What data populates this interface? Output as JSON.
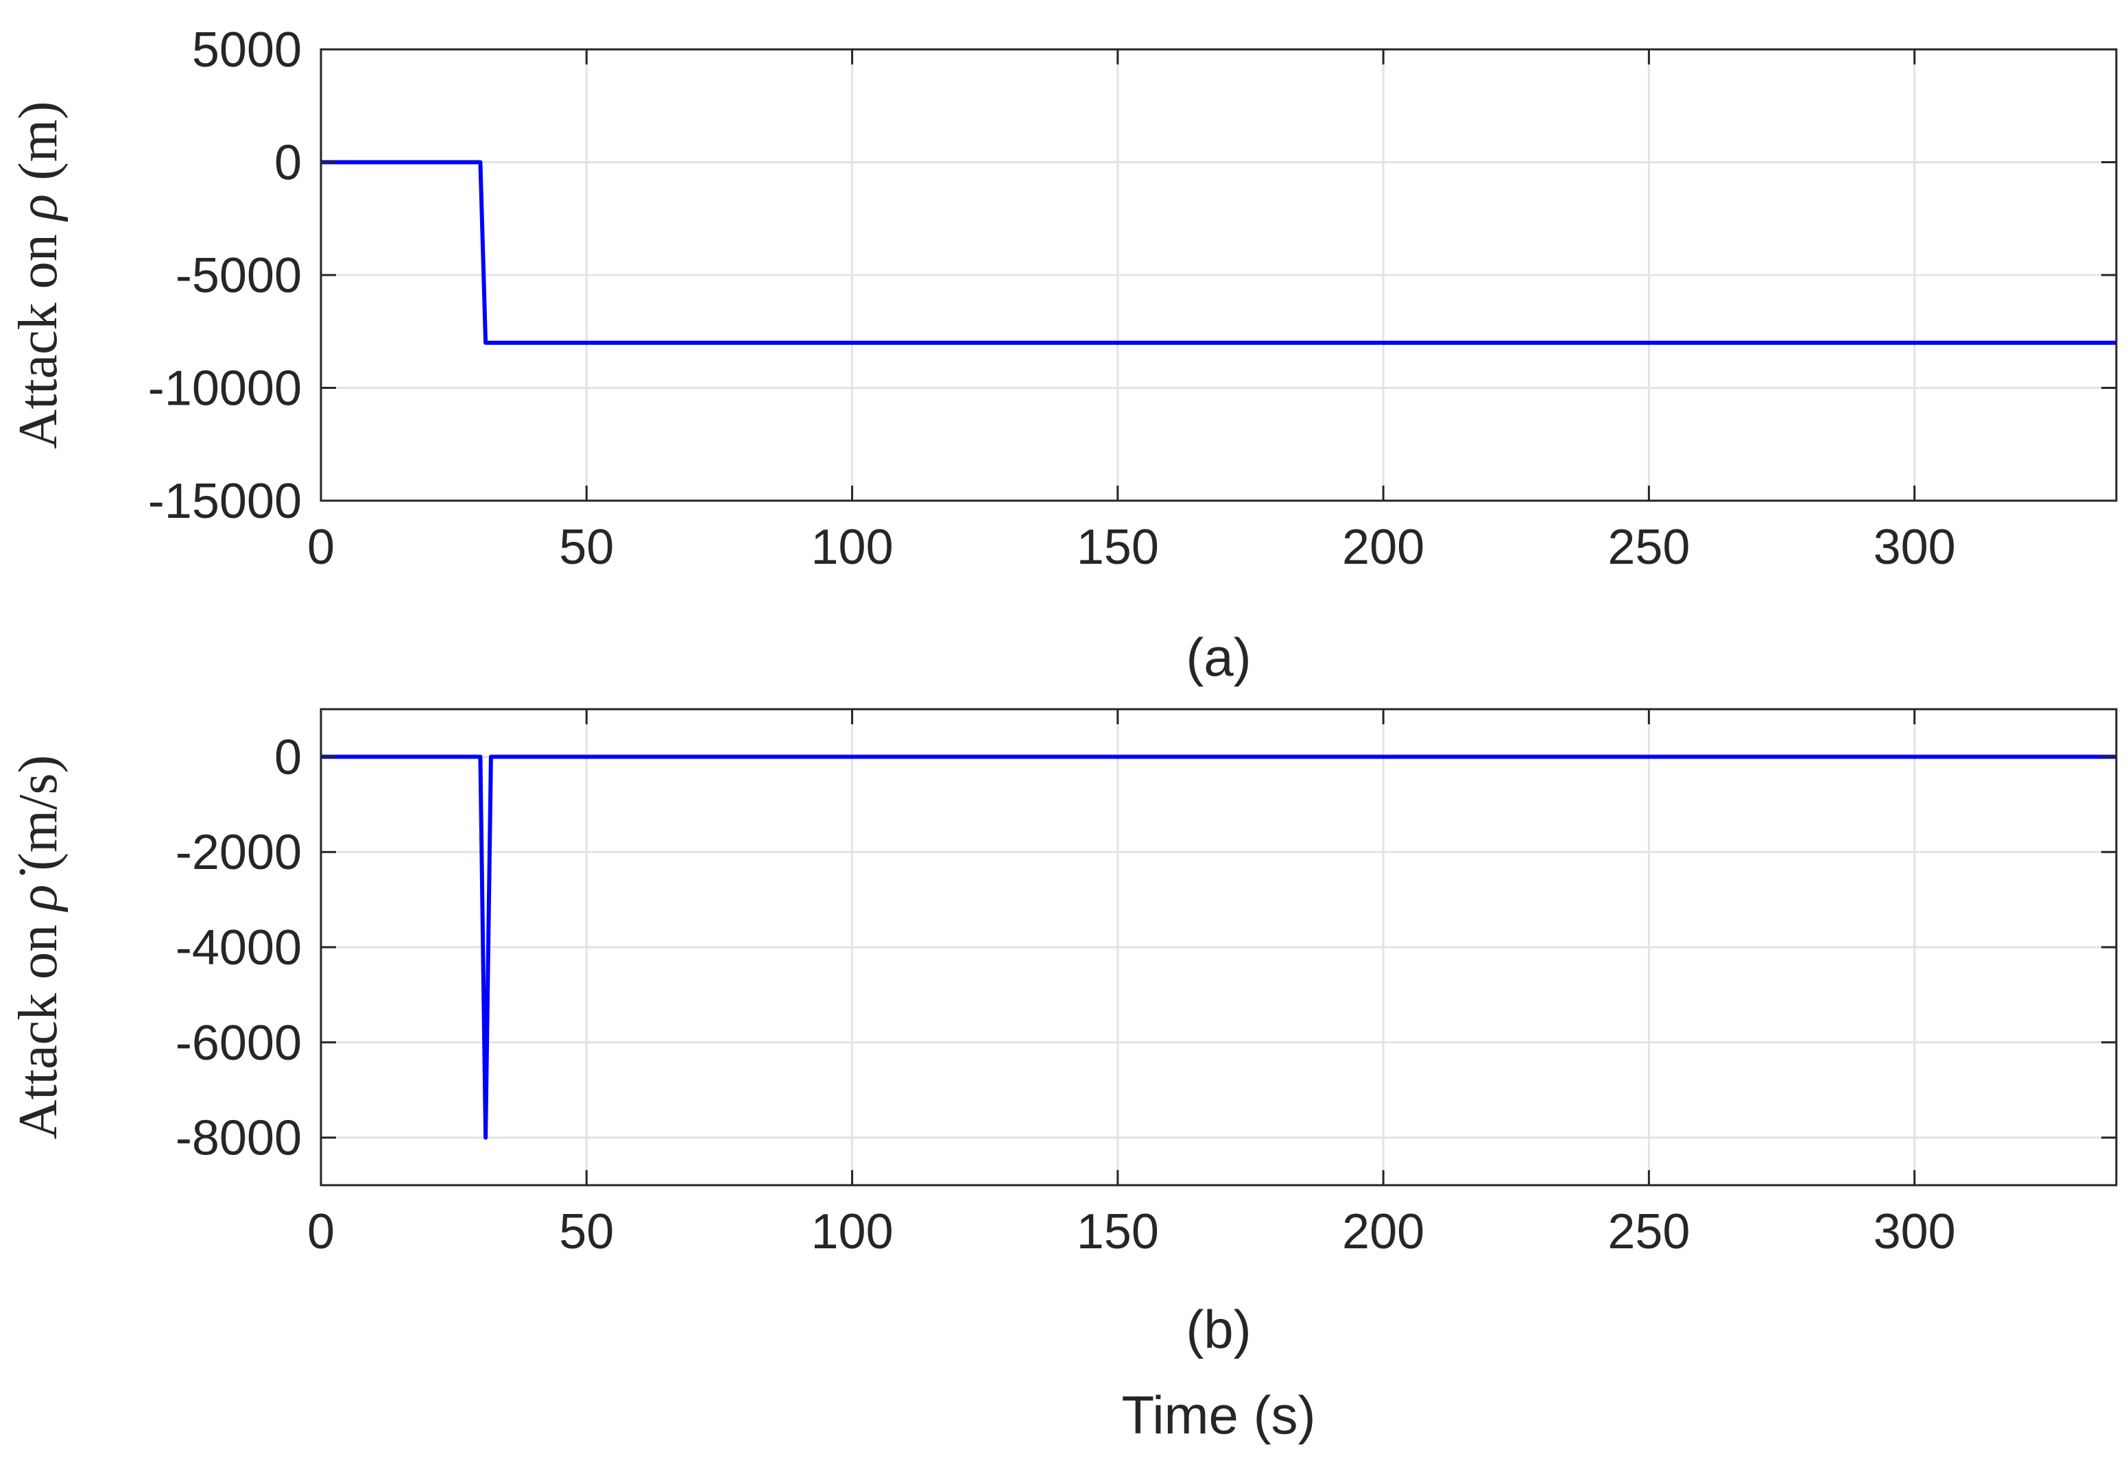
{
  "xlabel": "Time (s)",
  "colors": {
    "series": "#0000ff",
    "grid": "#e3e3e3",
    "axes": "#262626"
  },
  "panels": [
    {
      "caption": "(a)",
      "ylabel": {
        "prefix": "Attack on ",
        "symbol": "ρ",
        "unit": " (m)"
      },
      "xticks": [
        "0",
        "50",
        "100",
        "150",
        "200",
        "250",
        "300"
      ],
      "yticks": [
        "5000",
        "0",
        "-5000",
        "-10000",
        "-15000"
      ]
    },
    {
      "caption": "(b)",
      "ylabel": {
        "prefix": "Attack on ",
        "symbol": "ρ̇",
        "unit": " (m/s)"
      },
      "xticks": [
        "0",
        "50",
        "100",
        "150",
        "200",
        "250",
        "300"
      ],
      "yticks": [
        "0",
        "-2000",
        "-4000",
        "-6000",
        "-8000"
      ]
    }
  ],
  "chart_data": [
    {
      "type": "line",
      "xlabel": "",
      "ylabel": "Attack on ρ (m)",
      "xlim": [
        0,
        338
      ],
      "ylim": [
        -15000,
        5000
      ],
      "xticks": [
        0,
        50,
        100,
        150,
        200,
        250,
        300
      ],
      "yticks": [
        5000,
        0,
        -5000,
        -10000,
        -15000
      ],
      "grid": true,
      "series": [
        {
          "x": [
            0,
            30,
            31,
            338
          ],
          "y": [
            0,
            0,
            -8000,
            -8000
          ]
        }
      ]
    },
    {
      "type": "line",
      "xlabel": "Time (s)",
      "ylabel": "Attack on ρ̇ (m/s)",
      "xlim": [
        0,
        338
      ],
      "ylim": [
        -9000,
        1000
      ],
      "xticks": [
        0,
        50,
        100,
        150,
        200,
        250,
        300
      ],
      "yticks": [
        0,
        -2000,
        -4000,
        -6000,
        -8000
      ],
      "grid": true,
      "series": [
        {
          "x": [
            0,
            30,
            31,
            32,
            338
          ],
          "y": [
            0,
            0,
            -8000,
            0,
            0
          ]
        }
      ]
    }
  ]
}
